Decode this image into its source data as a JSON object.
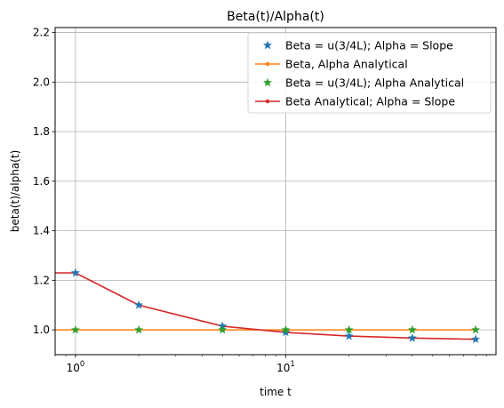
{
  "chart_data": {
    "type": "line",
    "title": "Beta(t)/Alpha(t)",
    "xlabel": "time t",
    "ylabel": "beta(t)/alpha(t)",
    "xscale": "log",
    "xlim": [
      0.8,
      100
    ],
    "ylim": [
      0.9,
      2.22
    ],
    "grid": true,
    "legend_position": "top-right",
    "x_tick_labels": [
      {
        "value": 1,
        "label": "10^0"
      },
      {
        "value": 10,
        "label": "10^1"
      }
    ],
    "y_ticks": [
      1.0,
      1.2,
      1.4,
      1.6,
      1.8,
      2.0,
      2.2
    ],
    "y_tick_labels": [
      "1.0",
      "1.2",
      "1.4",
      "1.6",
      "1.8",
      "2.0",
      "2.2"
    ],
    "series": [
      {
        "name": "Beta = u(3/4L); Alpha = Slope",
        "color": "#1f77b4",
        "marker": "star",
        "linestyle": "none",
        "x": [
          1,
          2,
          5,
          10,
          20,
          40,
          80
        ],
        "y": [
          1.23,
          1.1,
          1.015,
          0.99,
          0.975,
          0.967,
          0.962
        ]
      },
      {
        "name": "Beta, Alpha Analytical",
        "color": "#ff7f0e",
        "marker": "dot",
        "linestyle": "solid",
        "x": [
          0.8,
          1,
          2,
          5,
          10,
          20,
          40,
          80
        ],
        "y": [
          1.0,
          1.0,
          1.0,
          1.0,
          1.0,
          1.0,
          1.0,
          1.0
        ]
      },
      {
        "name": "Beta = u(3/4L); Alpha Analytical",
        "color": "#2ca02c",
        "marker": "star",
        "linestyle": "none",
        "x": [
          1,
          2,
          5,
          10,
          20,
          40,
          80
        ],
        "y": [
          1.0,
          1.0,
          1.0,
          1.0,
          1.0,
          1.0,
          1.0
        ]
      },
      {
        "name": "Beta Analytical; Alpha = Slope",
        "color": "#d62728",
        "marker": "dot",
        "linestyle": "solid",
        "x": [
          0.8,
          1,
          2,
          5,
          10,
          20,
          40,
          80
        ],
        "y": [
          1.23,
          1.23,
          1.1,
          1.015,
          0.99,
          0.975,
          0.967,
          0.962
        ]
      }
    ]
  }
}
